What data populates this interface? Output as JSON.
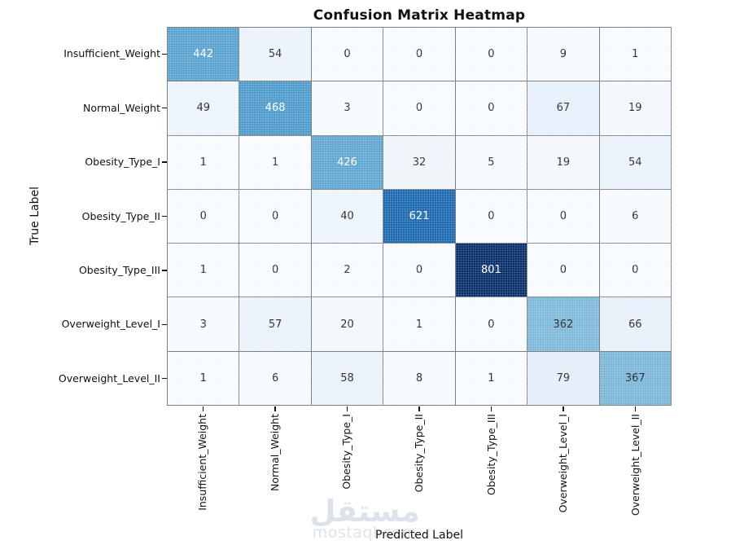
{
  "title": "Confusion Matrix Heatmap",
  "axes": {
    "x_label": "Predicted Label",
    "y_label": "True Label"
  },
  "watermark": {
    "arabic_text": "مستقل",
    "latin_text": "mostaql.com",
    "color": "#dde2eb"
  },
  "colors": {
    "background": "#ffffff",
    "grid_line": "#7a7a7a",
    "tick_mark": "#111111",
    "annotation_dark": "#262626",
    "annotation_light": "#ffffff",
    "title_color": "#111111"
  },
  "chart_data": {
    "type": "heatmap",
    "title": "Confusion Matrix Heatmap",
    "xlabel": "Predicted Label",
    "ylabel": "True Label",
    "colormap": "Blues",
    "vmin": 0,
    "vmax": 801,
    "legend": "none",
    "x_tick_labels": [
      "Insufficient_Weight",
      "Normal_Weight",
      "Obesity_Type_I",
      "Obesity_Type_II",
      "Obesity_Type_III",
      "Overweight_Level_I",
      "Overweight_Level_II"
    ],
    "y_tick_labels": [
      "Insufficient_Weight",
      "Normal_Weight",
      "Obesity_Type_I",
      "Obesity_Type_II",
      "Obesity_Type_III",
      "Overweight_Level_I",
      "Overweight_Level_II"
    ],
    "matrix": [
      [
        442,
        54,
        0,
        0,
        0,
        9,
        1
      ],
      [
        49,
        468,
        3,
        0,
        0,
        67,
        19
      ],
      [
        1,
        1,
        426,
        32,
        5,
        19,
        54
      ],
      [
        0,
        0,
        40,
        621,
        0,
        0,
        6
      ],
      [
        1,
        0,
        2,
        0,
        801,
        0,
        0
      ],
      [
        3,
        57,
        20,
        1,
        0,
        362,
        66
      ],
      [
        1,
        6,
        58,
        8,
        1,
        79,
        367
      ]
    ]
  }
}
